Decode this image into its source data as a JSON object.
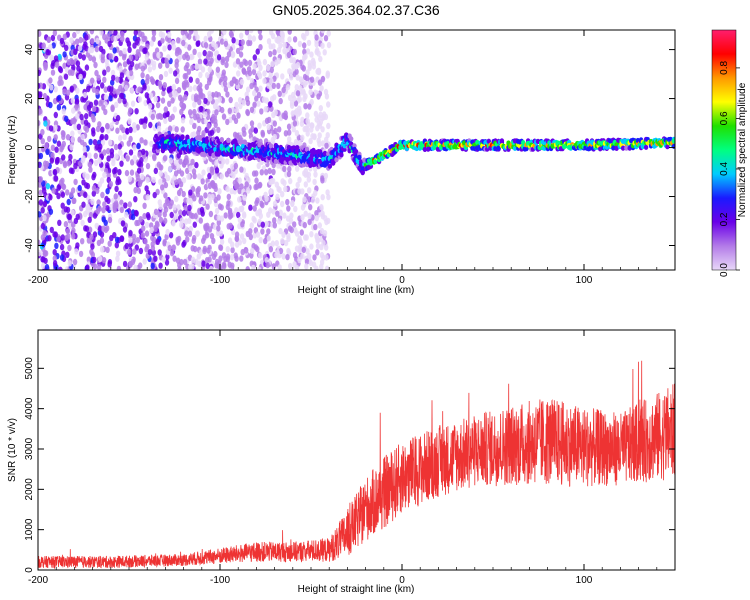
{
  "chart_data": [
    {
      "type": "heatmap",
      "title": "GN05.2025.364.02.37.C36",
      "xlabel": "Height of straight line (km)",
      "ylabel": "Frequency (Hz)",
      "xlim": [
        -200,
        150
      ],
      "ylim": [
        -50,
        48
      ],
      "xticks": [
        -200,
        -100,
        0,
        100
      ],
      "yticks": [
        -40,
        -20,
        0,
        20,
        40
      ],
      "colorbar": {
        "label": "Normalized spectral amplitude",
        "range": [
          0,
          0.95
        ],
        "ticks": [
          0.0,
          0.2,
          0.4,
          0.6,
          0.8
        ],
        "colors": [
          "#e8d8f8",
          "#b37be8",
          "#6a00e8",
          "#1a1aff",
          "#00ccff",
          "#00ff80",
          "#20e000",
          "#ffff00",
          "#ff9900",
          "#ff0000",
          "#ff1e6e"
        ]
      },
      "features": {
        "noise_region_x": [
          -200,
          -40
        ],
        "band_center_hz_x": [
          -130,
          -100,
          -60,
          -40,
          -30,
          -22,
          0,
          50,
          100,
          150
        ],
        "band_center_hz_y": [
          2,
          0,
          -3,
          -5,
          3,
          -8,
          1,
          1,
          1,
          2
        ],
        "cutoff_x": -20
      }
    },
    {
      "type": "line",
      "xlabel": "Height of straight line (km)",
      "ylabel": "SNR (10 * v/v)",
      "xlim": [
        -200,
        150
      ],
      "ylim": [
        0,
        5950
      ],
      "xticks": [
        -200,
        -100,
        0,
        100
      ],
      "yticks": [
        0,
        1000,
        2000,
        3000,
        4000,
        5000
      ],
      "series": [
        {
          "name": "SNR",
          "color": "#ee3333",
          "x": [
            -200,
            -160,
            -120,
            -100,
            -80,
            -60,
            -40,
            -30,
            -20,
            -10,
            0,
            20,
            40,
            60,
            80,
            100,
            120,
            140,
            150
          ],
          "y": [
            200,
            200,
            250,
            350,
            450,
            450,
            500,
            900,
            1500,
            1900,
            2300,
            2700,
            2950,
            3100,
            3200,
            3050,
            3000,
            3300,
            3450
          ],
          "spread": [
            150,
            150,
            150,
            200,
            250,
            250,
            300,
            600,
            800,
            900,
            900,
            900,
            900,
            1000,
            1100,
            1000,
            900,
            1100,
            1200
          ]
        }
      ]
    }
  ]
}
